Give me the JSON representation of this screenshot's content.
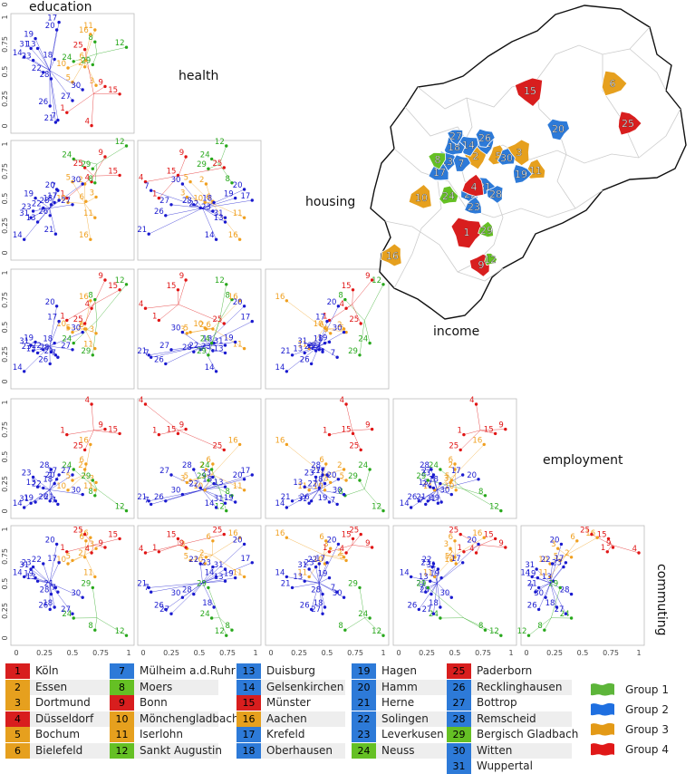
{
  "variables": [
    "education",
    "health",
    "housing",
    "income",
    "employment",
    "commuting"
  ],
  "cities": [
    {
      "id": 1,
      "name": "Köln",
      "group": 4
    },
    {
      "id": 2,
      "name": "Essen",
      "group": 3
    },
    {
      "id": 3,
      "name": "Dortmund",
      "group": 3
    },
    {
      "id": 4,
      "name": "Düsseldorf",
      "group": 4
    },
    {
      "id": 5,
      "name": "Bochum",
      "group": 3
    },
    {
      "id": 6,
      "name": "Bielefeld",
      "group": 3
    },
    {
      "id": 7,
      "name": "Mülheim a.d.Ruhr",
      "group": 2
    },
    {
      "id": 8,
      "name": "Moers",
      "group": 1
    },
    {
      "id": 9,
      "name": "Bonn",
      "group": 4
    },
    {
      "id": 10,
      "name": "Mönchengladbach",
      "group": 3
    },
    {
      "id": 11,
      "name": "Iserlohn",
      "group": 3
    },
    {
      "id": 12,
      "name": "Sankt Augustin",
      "group": 1
    },
    {
      "id": 13,
      "name": "Duisburg",
      "group": 2
    },
    {
      "id": 14,
      "name": "Gelsenkirchen",
      "group": 2
    },
    {
      "id": 15,
      "name": "Münster",
      "group": 4
    },
    {
      "id": 16,
      "name": "Aachen",
      "group": 3
    },
    {
      "id": 17,
      "name": "Krefeld",
      "group": 2
    },
    {
      "id": 18,
      "name": "Oberhausen",
      "group": 2
    },
    {
      "id": 19,
      "name": "Hagen",
      "group": 2
    },
    {
      "id": 20,
      "name": "Hamm",
      "group": 2
    },
    {
      "id": 21,
      "name": "Herne",
      "group": 2
    },
    {
      "id": 22,
      "name": "Solingen",
      "group": 2
    },
    {
      "id": 23,
      "name": "Leverkusen",
      "group": 2
    },
    {
      "id": 24,
      "name": "Neuss",
      "group": 1
    },
    {
      "id": 25,
      "name": "Paderborn",
      "group": 4
    },
    {
      "id": 26,
      "name": "Recklinghausen",
      "group": 2
    },
    {
      "id": 27,
      "name": "Bottrop",
      "group": 2
    },
    {
      "id": 28,
      "name": "Remscheid",
      "group": 2
    },
    {
      "id": 29,
      "name": "Bergisch Gladbach",
      "group": 1
    },
    {
      "id": 30,
      "name": "Witten",
      "group": 2
    },
    {
      "id": 31,
      "name": "Wuppertal",
      "group": 2
    }
  ],
  "groups": [
    {
      "label": "Group 1",
      "color": "#5db53a"
    },
    {
      "label": "Group 2",
      "color": "#1f6fe0"
    },
    {
      "label": "Group 3",
      "color": "#e39a17"
    },
    {
      "label": "Group 4",
      "color": "#e01818"
    }
  ],
  "point_colors": {
    "1": "#28a81c",
    "2": "#1a1acf",
    "3": "#f0a020",
    "4": "#e01515"
  },
  "legend_colors": {
    "1": "#65c024",
    "2": "#2d7ad8",
    "3": "#e6a01e",
    "4": "#d81e1e"
  },
  "chart_data": {
    "type": "scatter",
    "subtype": "scatterplot-matrix",
    "axis_ticks": [
      "0",
      "0.25",
      "0.5",
      "0.75",
      "1"
    ],
    "xlim": [
      0,
      1
    ],
    "ylim": [
      0,
      1
    ],
    "grid": false,
    "series": [
      {
        "id": 1,
        "education": 0.45,
        "health": 0.14,
        "housing": 0.52,
        "income": 0.58,
        "employment": 0.72,
        "commuting": 0.81
      },
      {
        "id": 2,
        "education": 0.61,
        "health": 0.56,
        "housing": 0.65,
        "income": 0.5,
        "employment": 0.4,
        "commuting": 0.76
      },
      {
        "id": 3,
        "education": 0.71,
        "health": 0.39,
        "housing": 0.53,
        "income": 0.46,
        "employment": 0.28,
        "commuting": 0.84
      },
      {
        "id": 4,
        "education": 0.67,
        "health": 0.02,
        "housing": 0.67,
        "income": 0.69,
        "employment": 1.0,
        "commuting": 0.8
      },
      {
        "id": 5,
        "education": 0.5,
        "health": 0.42,
        "housing": 0.67,
        "income": 0.47,
        "employment": 0.3,
        "commuting": 0.73
      },
      {
        "id": 6,
        "education": 0.62,
        "health": 0.62,
        "housing": 0.49,
        "income": 0.5,
        "employment": 0.45,
        "commuting": 0.91
      },
      {
        "id": 7,
        "education": 0.37,
        "health": 0.07,
        "housing": 0.59,
        "income": 0.24,
        "employment": 0.08,
        "commuting": 0.44
      },
      {
        "id": 8,
        "education": 0.7,
        "health": 0.79,
        "housing": 0.66,
        "income": 0.77,
        "employment": 0.16,
        "commuting": 0.09
      },
      {
        "id": 9,
        "education": 0.79,
        "health": 0.38,
        "housing": 0.9,
        "income": 0.95,
        "employment": 0.77,
        "commuting": 0.85
      },
      {
        "id": 10,
        "education": 0.46,
        "health": 0.55,
        "housing": 0.48,
        "income": 0.51,
        "employment": 0.21,
        "commuting": 0.7
      },
      {
        "id": 11,
        "education": 0.7,
        "health": 0.9,
        "housing": 0.34,
        "income": 0.32,
        "employment": 0.21,
        "commuting": 0.58
      },
      {
        "id": 12,
        "education": 0.98,
        "health": 0.74,
        "housing": 1.0,
        "income": 0.91,
        "employment": 0.02,
        "commuting": 0.04
      },
      {
        "id": 13,
        "education": 0.19,
        "health": 0.73,
        "housing": 0.3,
        "income": 0.28,
        "employment": 0.24,
        "commuting": 0.54
      },
      {
        "id": 14,
        "education": 0.07,
        "health": 0.65,
        "housing": 0.14,
        "income": 0.11,
        "employment": 0.05,
        "commuting": 0.58
      },
      {
        "id": 15,
        "education": 0.92,
        "health": 0.31,
        "housing": 0.73,
        "income": 0.86,
        "employment": 0.73,
        "commuting": 0.93
      },
      {
        "id": 16,
        "education": 0.66,
        "health": 0.86,
        "housing": 0.14,
        "income": 0.76,
        "employment": 0.63,
        "commuting": 0.94
      },
      {
        "id": 17,
        "education": 0.38,
        "health": 0.97,
        "housing": 0.5,
        "income": 0.57,
        "employment": 0.35,
        "commuting": 0.71
      },
      {
        "id": 18,
        "education": 0.34,
        "health": 0.63,
        "housing": 0.48,
        "income": 0.37,
        "employment": 0.27,
        "commuting": 0.3
      },
      {
        "id": 19,
        "education": 0.17,
        "health": 0.82,
        "housing": 0.52,
        "income": 0.38,
        "employment": 0.1,
        "commuting": 0.57
      },
      {
        "id": 20,
        "education": 0.36,
        "health": 0.9,
        "housing": 0.6,
        "income": 0.71,
        "employment": 0.31,
        "commuting": 0.88
      },
      {
        "id": 21,
        "education": 0.35,
        "health": 0.05,
        "housing": 0.19,
        "income": 0.26,
        "employment": 0.11,
        "commuting": 0.48
      },
      {
        "id": 22,
        "education": 0.24,
        "health": 0.51,
        "housing": 0.43,
        "income": 0.31,
        "employment": 0.23,
        "commuting": 0.7
      },
      {
        "id": 23,
        "education": 0.15,
        "health": 0.62,
        "housing": 0.4,
        "income": 0.3,
        "employment": 0.33,
        "commuting": 0.67
      },
      {
        "id": 24,
        "education": 0.51,
        "health": 0.61,
        "housing": 0.88,
        "income": 0.37,
        "employment": 0.4,
        "commuting": 0.2
      },
      {
        "id": 25,
        "education": 0.61,
        "health": 0.72,
        "housing": 0.8,
        "income": 0.55,
        "employment": 0.58,
        "commuting": 0.97
      },
      {
        "id": 26,
        "education": 0.3,
        "health": 0.2,
        "housing": 0.36,
        "income": 0.18,
        "employment": 0.11,
        "commuting": 0.28
      },
      {
        "id": 27,
        "education": 0.5,
        "health": 0.25,
        "housing": 0.46,
        "income": 0.31,
        "employment": 0.35,
        "commuting": 0.24
      },
      {
        "id": 28,
        "education": 0.31,
        "health": 0.45,
        "housing": 0.46,
        "income": 0.29,
        "employment": 0.4,
        "commuting": 0.42
      },
      {
        "id": 29,
        "education": 0.68,
        "health": 0.58,
        "housing": 0.79,
        "income": 0.26,
        "employment": 0.3,
        "commuting": 0.48
      },
      {
        "id": 30,
        "education": 0.59,
        "health": 0.35,
        "housing": 0.65,
        "income": 0.47,
        "employment": 0.17,
        "commuting": 0.39
      },
      {
        "id": 31,
        "education": 0.13,
        "health": 0.73,
        "housing": 0.34,
        "income": 0.35,
        "employment": 0.09,
        "commuting": 0.65
      }
    ]
  }
}
